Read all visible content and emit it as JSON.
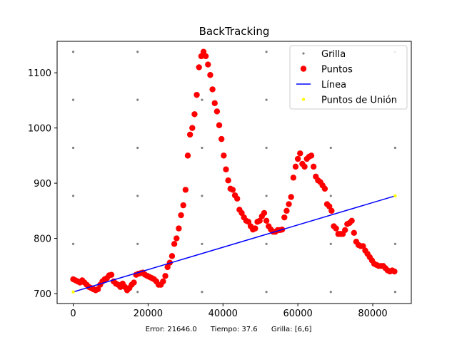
{
  "chart_data": {
    "type": "scatter",
    "title": "BackTracking",
    "xlabel": "",
    "ylabel": "",
    "xlim": [
      -4300,
      90300
    ],
    "ylim": [
      682,
      1157
    ],
    "xticks": [
      0,
      20000,
      40000,
      60000,
      80000
    ],
    "yticks": [
      700,
      800,
      900,
      1000,
      1100
    ],
    "legend_position": "top-right",
    "grid_points": {
      "name": "Grilla",
      "color": "#808080",
      "x": [
        0,
        17200,
        34400,
        51600,
        68800,
        86000
      ],
      "y": [
        703,
        790,
        877,
        964,
        1051,
        1138
      ]
    },
    "series": [
      {
        "name": "Puntos",
        "color": "#ff0000",
        "points": [
          [
            0,
            726
          ],
          [
            600,
            724
          ],
          [
            1200,
            722
          ],
          [
            1800,
            720
          ],
          [
            2400,
            724
          ],
          [
            3000,
            720
          ],
          [
            3600,
            716
          ],
          [
            4200,
            712
          ],
          [
            4800,
            710
          ],
          [
            5400,
            708
          ],
          [
            6000,
            706
          ],
          [
            6600,
            708
          ],
          [
            7200,
            716
          ],
          [
            7800,
            722
          ],
          [
            8400,
            726
          ],
          [
            9000,
            728
          ],
          [
            9600,
            733
          ],
          [
            10200,
            734
          ],
          [
            10800,
            722
          ],
          [
            11400,
            718
          ],
          [
            12000,
            716
          ],
          [
            12600,
            712
          ],
          [
            13200,
            718
          ],
          [
            13800,
            712
          ],
          [
            14400,
            706
          ],
          [
            15000,
            710
          ],
          [
            15600,
            716
          ],
          [
            16200,
            720
          ],
          [
            16800,
            734
          ],
          [
            17400,
            736
          ],
          [
            18000,
            737
          ],
          [
            18600,
            738
          ],
          [
            19200,
            734
          ],
          [
            19800,
            732
          ],
          [
            20400,
            730
          ],
          [
            21000,
            728
          ],
          [
            21600,
            726
          ],
          [
            22200,
            722
          ],
          [
            22800,
            716
          ],
          [
            23400,
            716
          ],
          [
            24000,
            722
          ],
          [
            24600,
            732
          ],
          [
            25200,
            748
          ],
          [
            25800,
            756
          ],
          [
            26400,
            768
          ],
          [
            27000,
            790
          ],
          [
            27600,
            800
          ],
          [
            28200,
            818
          ],
          [
            28800,
            842
          ],
          [
            29400,
            860
          ],
          [
            30000,
            888
          ],
          [
            30600,
            950
          ],
          [
            31200,
            988
          ],
          [
            31800,
            1000
          ],
          [
            32400,
            1025
          ],
          [
            33000,
            1060
          ],
          [
            33600,
            1110
          ],
          [
            34200,
            1130
          ],
          [
            34800,
            1138
          ],
          [
            35400,
            1130
          ],
          [
            36000,
            1115
          ],
          [
            36600,
            1096
          ],
          [
            37200,
            1070
          ],
          [
            37800,
            1045
          ],
          [
            38400,
            1030
          ],
          [
            39000,
            1005
          ],
          [
            39600,
            980
          ],
          [
            40200,
            950
          ],
          [
            40800,
            925
          ],
          [
            41400,
            905
          ],
          [
            42000,
            890
          ],
          [
            42600,
            888
          ],
          [
            43200,
            878
          ],
          [
            43800,
            872
          ],
          [
            44400,
            852
          ],
          [
            45000,
            846
          ],
          [
            45600,
            838
          ],
          [
            46200,
            832
          ],
          [
            46800,
            830
          ],
          [
            47400,
            822
          ],
          [
            48000,
            816
          ],
          [
            48600,
            818
          ],
          [
            49200,
            830
          ],
          [
            49800,
            832
          ],
          [
            50400,
            840
          ],
          [
            51000,
            846
          ],
          [
            51600,
            832
          ],
          [
            52200,
            822
          ],
          [
            52800,
            816
          ],
          [
            53400,
            812
          ],
          [
            54000,
            812
          ],
          [
            54600,
            815
          ],
          [
            55200,
            815
          ],
          [
            55800,
            816
          ],
          [
            56400,
            838
          ],
          [
            57000,
            850
          ],
          [
            57600,
            862
          ],
          [
            58200,
            875
          ],
          [
            58800,
            910
          ],
          [
            59400,
            930
          ],
          [
            60000,
            944
          ],
          [
            60600,
            954
          ],
          [
            61200,
            935
          ],
          [
            61800,
            930
          ],
          [
            62400,
            944
          ],
          [
            63000,
            948
          ],
          [
            63600,
            950
          ],
          [
            64200,
            930
          ],
          [
            64800,
            912
          ],
          [
            65400,
            905
          ],
          [
            66000,
            902
          ],
          [
            66600,
            896
          ],
          [
            67200,
            890
          ],
          [
            67800,
            862
          ],
          [
            68400,
            858
          ],
          [
            69000,
            850
          ],
          [
            69600,
            822
          ],
          [
            70200,
            818
          ],
          [
            70800,
            808
          ],
          [
            71400,
            808
          ],
          [
            72000,
            808
          ],
          [
            72600,
            815
          ],
          [
            73200,
            826
          ],
          [
            73800,
            828
          ],
          [
            74400,
            832
          ],
          [
            75000,
            810
          ],
          [
            75600,
            794
          ],
          [
            76200,
            788
          ],
          [
            76800,
            786
          ],
          [
            77400,
            786
          ],
          [
            78000,
            778
          ],
          [
            78600,
            772
          ],
          [
            79200,
            766
          ],
          [
            79800,
            760
          ],
          [
            80400,
            754
          ],
          [
            81000,
            752
          ],
          [
            81600,
            750
          ],
          [
            82200,
            750
          ],
          [
            82800,
            750
          ],
          [
            83400,
            746
          ],
          [
            84000,
            742
          ],
          [
            84600,
            740
          ],
          [
            85200,
            742
          ],
          [
            85800,
            740
          ]
        ]
      },
      {
        "name": "Línea",
        "color": "#0000ff",
        "points": [
          [
            0,
            703
          ],
          [
            86000,
            877
          ]
        ]
      },
      {
        "name": "Puntos de Unión",
        "color": "#ffff00",
        "points": [
          [
            0,
            703
          ],
          [
            86000,
            877
          ]
        ]
      }
    ]
  },
  "footer": {
    "error": "Error: 21646.0",
    "time": "Tiempo: 37.6",
    "grid": "Grilla: [6,6]"
  }
}
